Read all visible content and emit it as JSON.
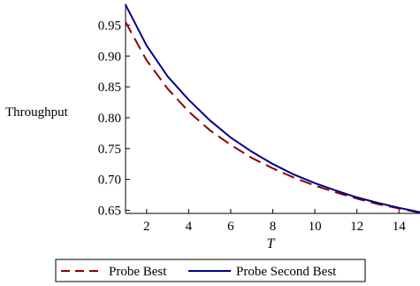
{
  "colors": {
    "probe_best": "#8b0000",
    "probe_second_best": "#00008b"
  },
  "chart_data": {
    "type": "line",
    "xlabel": "T",
    "ylabel": "Throughput",
    "xlim": [
      1,
      15
    ],
    "ylim": [
      0.645,
      0.985
    ],
    "x_ticks": [
      2,
      4,
      6,
      8,
      10,
      12,
      14
    ],
    "y_ticks": [
      0.65,
      0.7,
      0.75,
      0.8,
      0.85,
      0.9,
      0.95
    ],
    "x_tick_labels": [
      "2",
      "4",
      "6",
      "8",
      "10",
      "12",
      "14"
    ],
    "y_tick_labels": [
      "0.65",
      "0.70",
      "0.75",
      "0.80",
      "0.85",
      "0.90",
      "0.95"
    ],
    "legend_position": "bottom-center",
    "series": [
      {
        "name": "Probe Best",
        "style": "dashed",
        "x": [
          1,
          2,
          3,
          4,
          5,
          6,
          7,
          8,
          9,
          10,
          11,
          12,
          13,
          14,
          15
        ],
        "y": [
          0.955,
          0.893,
          0.847,
          0.81,
          0.78,
          0.756,
          0.735,
          0.718,
          0.703,
          0.69,
          0.679,
          0.669,
          0.66,
          0.653,
          0.646
        ]
      },
      {
        "name": "Probe Second Best",
        "style": "solid",
        "x": [
          1,
          2,
          3,
          4,
          5,
          6,
          7,
          8,
          9,
          10,
          11,
          12,
          13,
          14,
          15
        ],
        "y": [
          0.983,
          0.917,
          0.867,
          0.829,
          0.796,
          0.768,
          0.745,
          0.725,
          0.708,
          0.694,
          0.682,
          0.671,
          0.662,
          0.654,
          0.647
        ]
      }
    ]
  }
}
